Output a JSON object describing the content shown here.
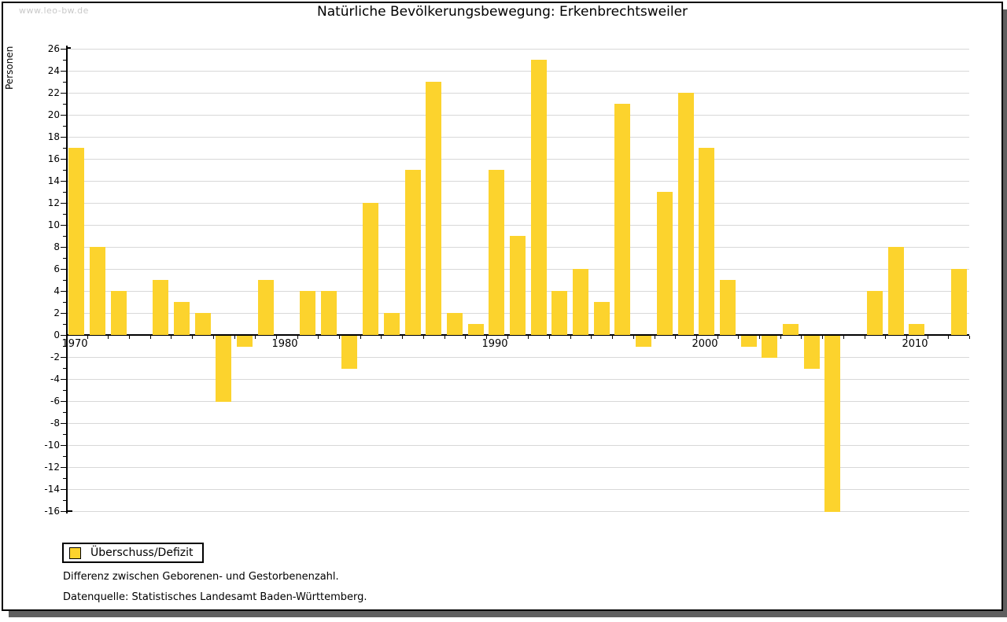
{
  "watermark": "www.leo-bw.de",
  "header": {
    "title": "Natürliche Bevölkerungsbewegung: Erkenbrechtsweiler"
  },
  "legend": {
    "label": "Überschuss/Defizit"
  },
  "footnotes": {
    "line1": "Differenz zwischen Geborenen- und Gestorbenenzahl.",
    "line2": "Datenquelle: Statistisches Landesamt Baden-Württemberg."
  },
  "colors": {
    "bar": "#FCD32D",
    "grid": "#D8D8D8",
    "axis": "#000000",
    "shadow": "#5F5F5F",
    "watermark": "#C9C9C9"
  },
  "chart_data": {
    "type": "bar",
    "title": "Natürliche Bevölkerungsbewegung: Erkenbrechtsweiler",
    "xlabel": "",
    "ylabel": "Personen",
    "ylim": [
      -16,
      26
    ],
    "ytick_step": 2,
    "ytick_minor_step": 1,
    "grid": "horizontal",
    "legend_entries": [
      "Überschuss/Defizit"
    ],
    "legend_position": "bottom-left",
    "xticks_labeled": [
      1970,
      1980,
      1990,
      2000,
      2010
    ],
    "x": [
      1970,
      1971,
      1972,
      1973,
      1974,
      1975,
      1976,
      1977,
      1978,
      1979,
      1980,
      1981,
      1982,
      1983,
      1984,
      1985,
      1986,
      1987,
      1988,
      1989,
      1990,
      1991,
      1992,
      1993,
      1994,
      1995,
      1996,
      1997,
      1998,
      1999,
      2000,
      2001,
      2002,
      2003,
      2004,
      2005,
      2006,
      2007,
      2008,
      2009,
      2010,
      2011,
      2012
    ],
    "values": [
      17,
      8,
      4,
      0,
      5,
      3,
      2,
      -6,
      -1,
      5,
      0,
      4,
      4,
      -3,
      12,
      2,
      15,
      23,
      2,
      1,
      15,
      9,
      25,
      4,
      6,
      3,
      21,
      -1,
      13,
      22,
      17,
      5,
      -1,
      -2,
      1,
      -3,
      -16,
      0,
      4,
      8,
      1,
      0,
      6
    ]
  }
}
